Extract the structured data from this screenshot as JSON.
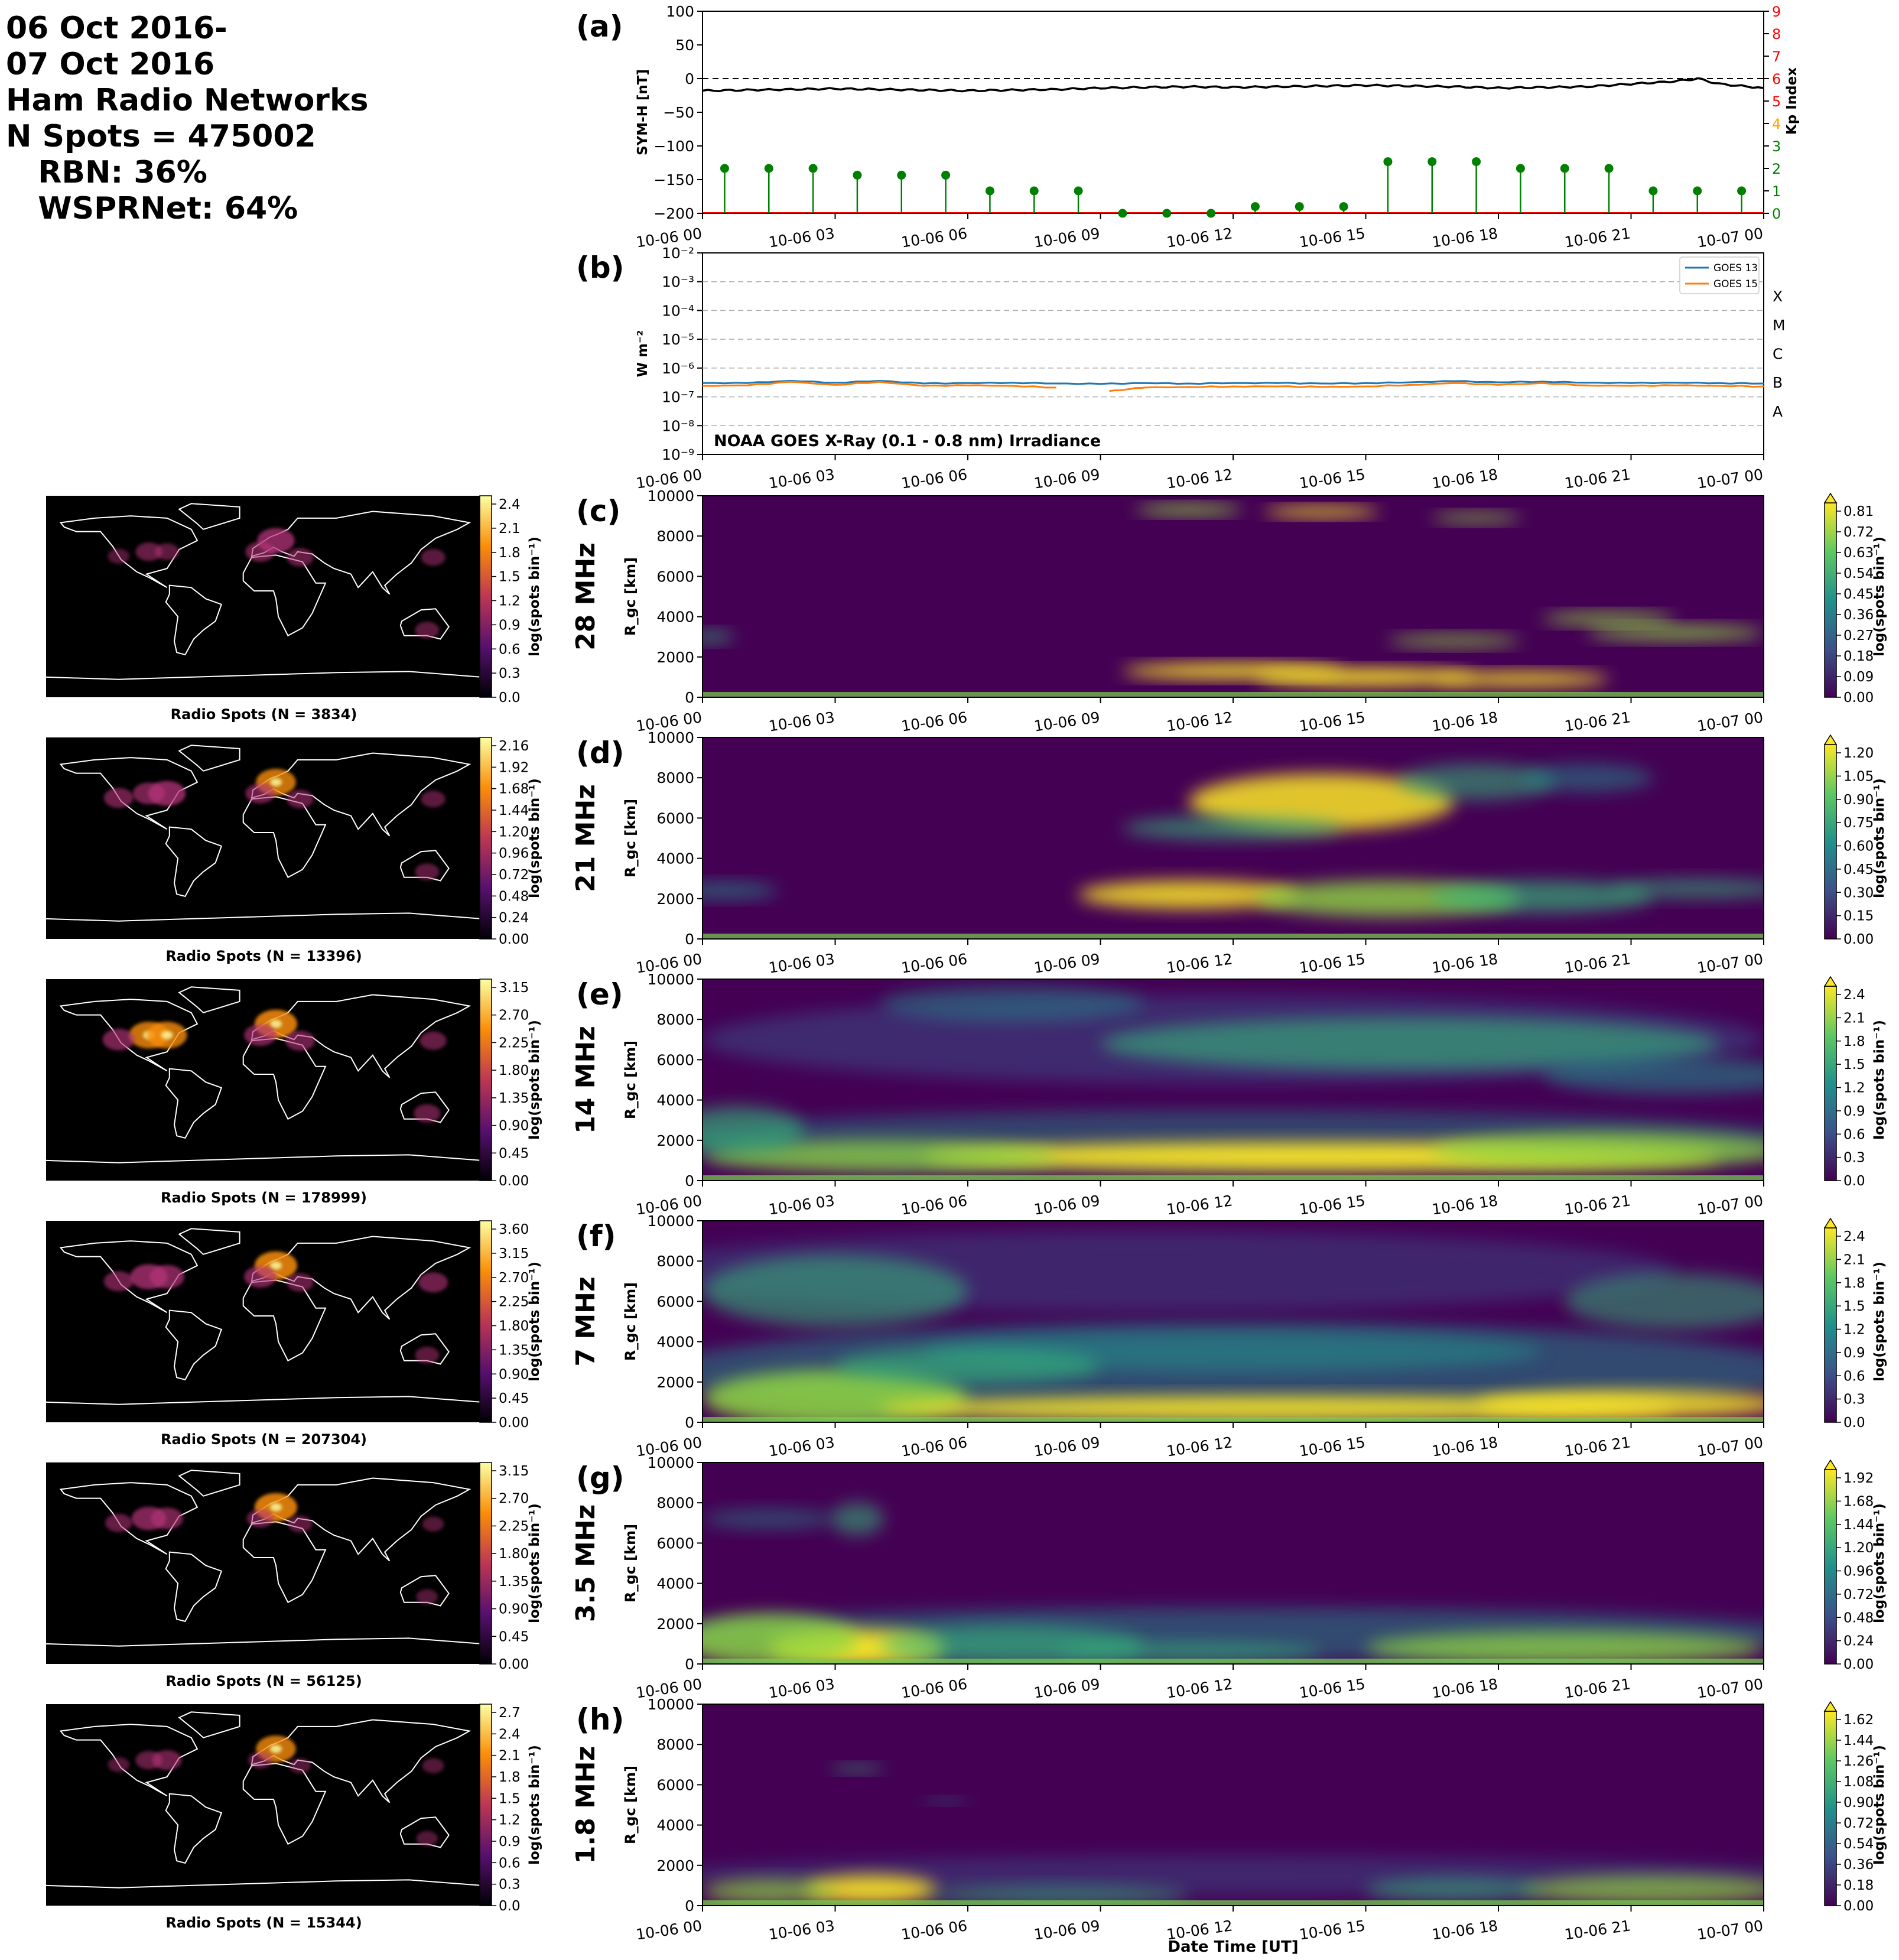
{
  "header": {
    "line1": "06 Oct 2016-",
    "line2": "07 Oct 2016",
    "line3": "Ham Radio Networks",
    "line4": "N Spots = 475002",
    "line5": "   RBN: 36%",
    "line6": "   WSPRNet: 64%"
  },
  "time_ticks": [
    "10-06 00",
    "10-06 03",
    "10-06 06",
    "10-06 09",
    "10-06 12",
    "10-06 15",
    "10-06 18",
    "10-06 21",
    "10-07 00"
  ],
  "colors": {
    "symh": "#000000",
    "kp_stem": "#008000",
    "goes13": "#1f77b4",
    "goes15": "#ff7f0e",
    "map_bg": "#000000",
    "coast": "#ffffff"
  },
  "chart_data": [
    {
      "type": "line",
      "panel_label": "(a)",
      "ylabel": "SYM-H [nT]",
      "ylabel_right": "Kp Index",
      "ylim": [
        -200,
        100
      ],
      "yticks": [
        "100",
        "50",
        "0",
        "−50",
        "−100",
        "−150",
        "−200"
      ],
      "y2lim": [
        0,
        9
      ],
      "y2ticks": [
        "9",
        "8",
        "7",
        "6",
        "5",
        "4",
        "3",
        "2",
        "1",
        "0"
      ],
      "series": [
        {
          "x": [
            0,
            1,
            2,
            3,
            4,
            5,
            6,
            7,
            8,
            9,
            10,
            11,
            12,
            13,
            14,
            15,
            16,
            17,
            18,
            19,
            20,
            21,
            22,
            22.5,
            23,
            24
          ],
          "values": [
            -18,
            -17,
            -16,
            -15,
            -16,
            -17,
            -18,
            -17,
            -16,
            -14,
            -13,
            -12,
            -13,
            -12,
            -11,
            -10,
            -11,
            -12,
            -14,
            -13,
            -12,
            -8,
            -4,
            0,
            -8,
            -14
          ]
        },
        {
          "x": [
            0,
            1,
            2,
            3,
            4,
            5,
            6,
            7,
            8,
            9,
            10,
            11,
            12,
            13,
            14,
            15,
            16,
            17,
            18,
            19,
            20,
            21,
            22,
            23
          ],
          "values": [
            2,
            2,
            2,
            1.7,
            1.7,
            1.7,
            1,
            1,
            1,
            0,
            0,
            0,
            0.3,
            0.3,
            0.3,
            2.3,
            2.3,
            2.3,
            2,
            2,
            2,
            1,
            1,
            1
          ]
        }
      ]
    },
    {
      "type": "line",
      "panel_label": "(b)",
      "ylabel": "W m⁻²",
      "yscale": "log",
      "ylim": [
        1e-09,
        0.01
      ],
      "yticks": [
        "10⁻²",
        "10⁻³",
        "10⁻⁴",
        "10⁻⁵",
        "10⁻⁶",
        "10⁻⁷",
        "10⁻⁸",
        "10⁻⁹"
      ],
      "flare_classes": [
        "X",
        "M",
        "C",
        "B",
        "A"
      ],
      "annotation": "NOAA GOES X-Ray (0.1 - 0.8 nm) Irradiance",
      "series": [
        {
          "name": "GOES 13",
          "x": [
            0,
            1,
            2,
            3,
            4,
            5,
            6,
            7,
            8,
            9,
            10,
            11,
            12,
            13,
            14,
            15,
            16,
            17,
            18,
            19,
            20,
            21,
            22,
            23,
            24
          ],
          "values": [
            3e-07,
            3e-07,
            3.6e-07,
            3.1e-07,
            3.6e-07,
            2.9e-07,
            3e-07,
            3.1e-07,
            2.9e-07,
            2.8e-07,
            3e-07,
            2.9e-07,
            3e-07,
            3e-07,
            2.9e-07,
            3e-07,
            3.2e-07,
            3.5e-07,
            3.2e-07,
            3.4e-07,
            3.1e-07,
            3e-07,
            3.1e-07,
            3e-07,
            2.9e-07
          ]
        },
        {
          "name": "GOES 15",
          "x": [
            0,
            1,
            2,
            3,
            4,
            5,
            6,
            7,
            8,
            9,
            9.2,
            9.7,
            10,
            11,
            12,
            13,
            14,
            15,
            16,
            17,
            18,
            19,
            20,
            21,
            22,
            23,
            24
          ],
          "values": [
            2.4e-07,
            2.5e-07,
            3.3e-07,
            2.6e-07,
            3.3e-07,
            2.4e-07,
            2.5e-07,
            2.4e-07,
            2.1e-07,
            null,
            1.6e-07,
            1.9e-07,
            2.1e-07,
            2.2e-07,
            2.3e-07,
            2.3e-07,
            2.2e-07,
            2.3e-07,
            2.6e-07,
            3e-07,
            2.6e-07,
            3e-07,
            2.5e-07,
            2.4e-07,
            2.5e-07,
            2.4e-07,
            2.3e-07
          ]
        }
      ]
    },
    {
      "type": "heatmap",
      "panel_label": "(c)",
      "band": "28 MHz",
      "ylabel": "R_gc [km]",
      "ylim": [
        0,
        10000
      ],
      "yticks": [
        "0",
        "2000",
        "4000",
        "6000",
        "8000",
        "10000"
      ],
      "colormap": "viridis",
      "cbar_ticks": [
        "0.81",
        "0.72",
        "0.63",
        "0.54",
        "0.45",
        "0.36",
        "0.27",
        "0.18",
        "0.09",
        "0.00"
      ],
      "cbar_label": "log(spots bin⁻¹)",
      "map_cbar_ticks": [
        "2.4",
        "2.1",
        "1.8",
        "1.5",
        "1.2",
        "0.9",
        "0.6",
        "0.3",
        "0.0"
      ],
      "map_caption": "Radio Spots (N = 3834)",
      "map_n": 3834
    },
    {
      "type": "heatmap",
      "panel_label": "(d)",
      "band": "21 MHz",
      "ylabel": "R_gc [km]",
      "ylim": [
        0,
        10000
      ],
      "yticks": [
        "0",
        "2000",
        "4000",
        "6000",
        "8000",
        "10000"
      ],
      "colormap": "viridis",
      "cbar_ticks": [
        "1.20",
        "1.05",
        "0.90",
        "0.75",
        "0.60",
        "0.45",
        "0.30",
        "0.15",
        "0.00"
      ],
      "cbar_label": "log(spots bin⁻¹)",
      "map_cbar_ticks": [
        "2.16",
        "1.92",
        "1.68",
        "1.44",
        "1.20",
        "0.96",
        "0.72",
        "0.48",
        "0.24",
        "0.00"
      ],
      "map_caption": "Radio Spots (N = 13396)",
      "map_n": 13396
    },
    {
      "type": "heatmap",
      "panel_label": "(e)",
      "band": "14 MHz",
      "ylabel": "R_gc [km]",
      "ylim": [
        0,
        10000
      ],
      "yticks": [
        "0",
        "2000",
        "4000",
        "6000",
        "8000",
        "10000"
      ],
      "colormap": "viridis",
      "cbar_ticks": [
        "2.4",
        "2.1",
        "1.8",
        "1.5",
        "1.2",
        "0.9",
        "0.6",
        "0.3",
        "0.0"
      ],
      "cbar_label": "log(spots bin⁻¹)",
      "map_cbar_ticks": [
        "3.15",
        "2.70",
        "2.25",
        "1.80",
        "1.35",
        "0.90",
        "0.45",
        "0.00"
      ],
      "map_caption": "Radio Spots (N = 178999)",
      "map_n": 178999
    },
    {
      "type": "heatmap",
      "panel_label": "(f)",
      "band": "7 MHz",
      "ylabel": "R_gc [km]",
      "ylim": [
        0,
        10000
      ],
      "yticks": [
        "0",
        "2000",
        "4000",
        "6000",
        "8000",
        "10000"
      ],
      "colormap": "viridis",
      "cbar_ticks": [
        "2.4",
        "2.1",
        "1.8",
        "1.5",
        "1.2",
        "0.9",
        "0.6",
        "0.3",
        "0.0"
      ],
      "cbar_label": "log(spots bin⁻¹)",
      "map_cbar_ticks": [
        "3.60",
        "3.15",
        "2.70",
        "2.25",
        "1.80",
        "1.35",
        "0.90",
        "0.45",
        "0.00"
      ],
      "map_caption": "Radio Spots (N = 207304)",
      "map_n": 207304
    },
    {
      "type": "heatmap",
      "panel_label": "(g)",
      "band": "3.5 MHz",
      "ylabel": "R_gc [km]",
      "ylim": [
        0,
        10000
      ],
      "yticks": [
        "0",
        "2000",
        "4000",
        "6000",
        "8000",
        "10000"
      ],
      "colormap": "viridis",
      "cbar_ticks": [
        "1.92",
        "1.68",
        "1.44",
        "1.20",
        "0.96",
        "0.72",
        "0.48",
        "0.24",
        "0.00"
      ],
      "cbar_label": "log(spots bin⁻¹)",
      "map_cbar_ticks": [
        "3.15",
        "2.70",
        "2.25",
        "1.80",
        "1.35",
        "0.90",
        "0.45",
        "0.00"
      ],
      "map_caption": "Radio Spots (N = 56125)",
      "map_n": 56125
    },
    {
      "type": "heatmap",
      "panel_label": "(h)",
      "band": "1.8 MHz",
      "ylabel": "R_gc [km]",
      "ylim": [
        0,
        10000
      ],
      "yticks": [
        "0",
        "2000",
        "4000",
        "6000",
        "8000",
        "10000"
      ],
      "colormap": "viridis",
      "cbar_ticks": [
        "1.62",
        "1.44",
        "1.26",
        "1.08",
        "0.90",
        "0.72",
        "0.54",
        "0.36",
        "0.18",
        "0.00"
      ],
      "cbar_label": "log(spots bin⁻¹)",
      "map_cbar_ticks": [
        "2.7",
        "2.4",
        "2.1",
        "1.8",
        "1.5",
        "1.2",
        "0.9",
        "0.6",
        "0.3",
        "0.0"
      ],
      "map_caption": "Radio Spots (N = 15344)",
      "map_n": 15344,
      "xlabel": "Date Time [UT]"
    }
  ]
}
